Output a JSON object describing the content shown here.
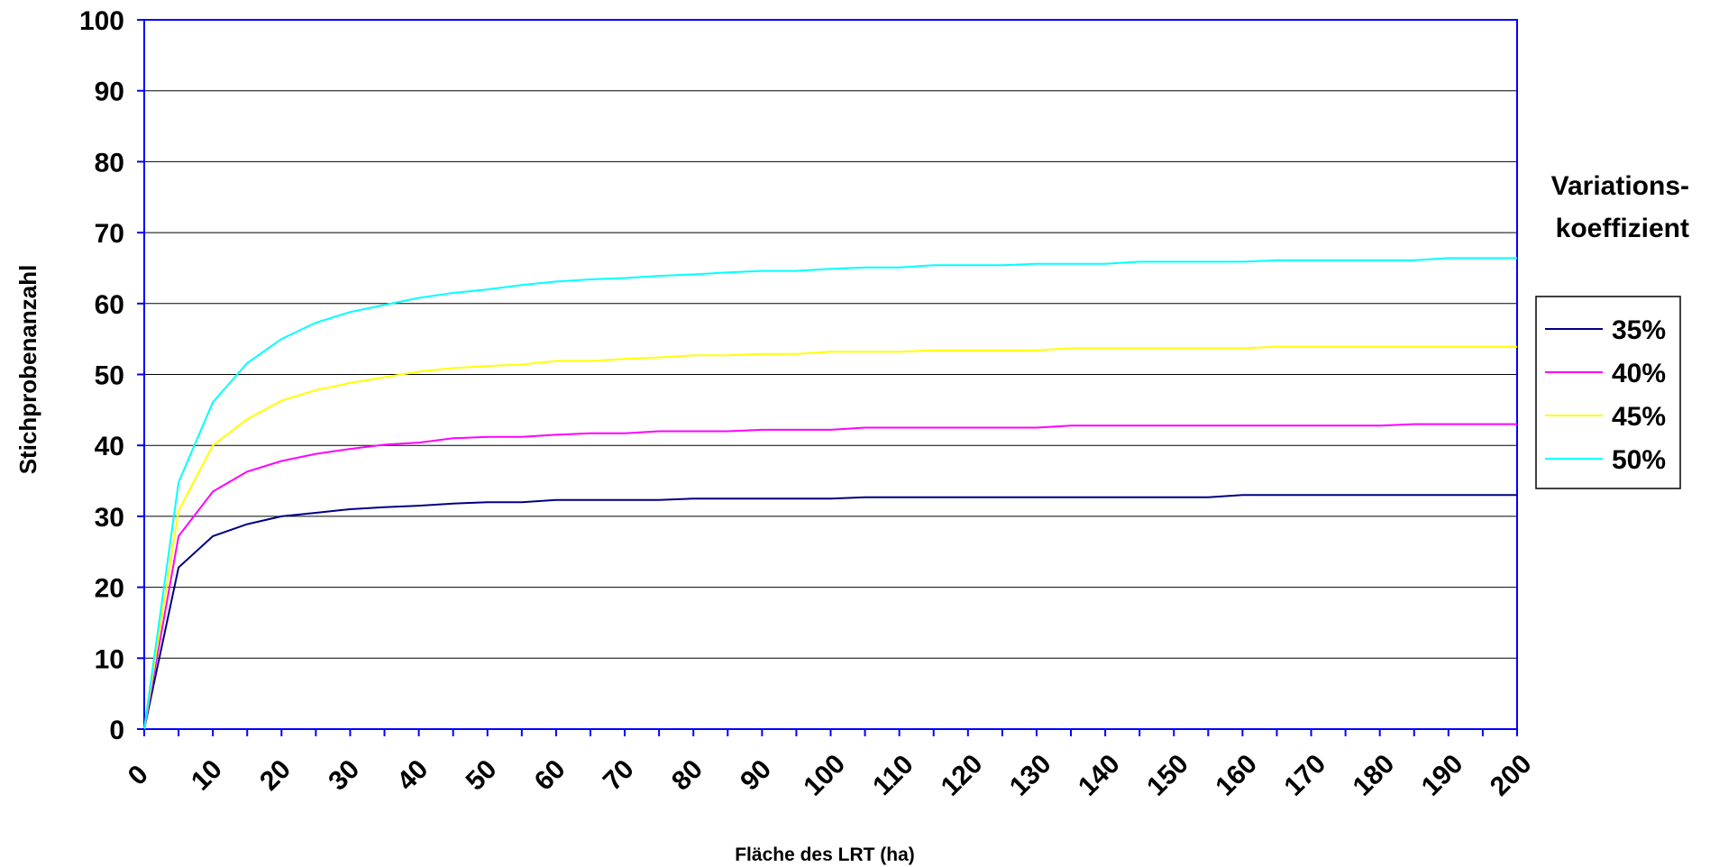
{
  "chart_data": {
    "type": "line",
    "xlabel": "Fläche des LRT (ha)",
    "ylabel": "Stichprobenanzahl",
    "xlim": [
      0,
      200
    ],
    "ylim": [
      0,
      100
    ],
    "x_ticks": [
      0,
      10,
      20,
      30,
      40,
      50,
      60,
      70,
      80,
      90,
      100,
      110,
      120,
      130,
      140,
      150,
      160,
      170,
      180,
      190,
      200
    ],
    "y_ticks": [
      0,
      10,
      20,
      30,
      40,
      50,
      60,
      70,
      80,
      90,
      100
    ],
    "grid": "horizontal",
    "legend_title": [
      "Variations-",
      "koeffizient"
    ],
    "legend_position": "right",
    "x": [
      0,
      5,
      10,
      15,
      20,
      25,
      30,
      35,
      40,
      45,
      50,
      55,
      60,
      65,
      70,
      75,
      80,
      85,
      90,
      95,
      100,
      105,
      110,
      115,
      120,
      125,
      130,
      135,
      140,
      145,
      150,
      155,
      160,
      165,
      170,
      175,
      180,
      185,
      190,
      195,
      200
    ],
    "series": [
      {
        "name": "35%",
        "color": "#000080",
        "values": [
          0,
          22.8,
          27.2,
          28.9,
          30.0,
          30.5,
          31.0,
          31.3,
          31.5,
          31.8,
          32.0,
          32.0,
          32.3,
          32.3,
          32.3,
          32.3,
          32.5,
          32.5,
          32.5,
          32.5,
          32.5,
          32.7,
          32.7,
          32.7,
          32.7,
          32.7,
          32.7,
          32.7,
          32.7,
          32.7,
          32.7,
          32.7,
          33.0,
          33.0,
          33.0,
          33.0,
          33.0,
          33.0,
          33.0,
          33.0,
          33.0
        ]
      },
      {
        "name": "40%",
        "color": "#ff00ff",
        "values": [
          0,
          27.2,
          33.5,
          36.3,
          37.8,
          38.8,
          39.5,
          40.1,
          40.4,
          41.0,
          41.2,
          41.2,
          41.5,
          41.7,
          41.7,
          42.0,
          42.0,
          42.0,
          42.2,
          42.2,
          42.2,
          42.5,
          42.5,
          42.5,
          42.5,
          42.5,
          42.5,
          42.8,
          42.8,
          42.8,
          42.8,
          42.8,
          42.8,
          42.8,
          42.8,
          42.8,
          42.8,
          43.0,
          43.0,
          43.0,
          43.0
        ]
      },
      {
        "name": "45%",
        "color": "#ffff00",
        "values": [
          0,
          30.8,
          40.0,
          43.7,
          46.3,
          47.8,
          48.8,
          49.6,
          50.4,
          50.9,
          51.2,
          51.4,
          51.9,
          51.9,
          52.2,
          52.4,
          52.7,
          52.7,
          52.9,
          52.9,
          53.2,
          53.2,
          53.2,
          53.4,
          53.4,
          53.4,
          53.4,
          53.7,
          53.7,
          53.7,
          53.7,
          53.7,
          53.7,
          53.9,
          53.9,
          53.9,
          53.9,
          53.9,
          53.9,
          53.9,
          53.9
        ]
      },
      {
        "name": "50%",
        "color": "#00ffff",
        "values": [
          0,
          34.8,
          46.1,
          51.6,
          55.0,
          57.3,
          58.8,
          59.8,
          60.8,
          61.5,
          62.0,
          62.6,
          63.1,
          63.4,
          63.6,
          63.9,
          64.1,
          64.4,
          64.6,
          64.6,
          64.9,
          65.1,
          65.1,
          65.4,
          65.4,
          65.4,
          65.6,
          65.6,
          65.6,
          65.9,
          65.9,
          65.9,
          65.9,
          66.1,
          66.1,
          66.1,
          66.1,
          66.1,
          66.4,
          66.4,
          66.4
        ]
      }
    ]
  }
}
